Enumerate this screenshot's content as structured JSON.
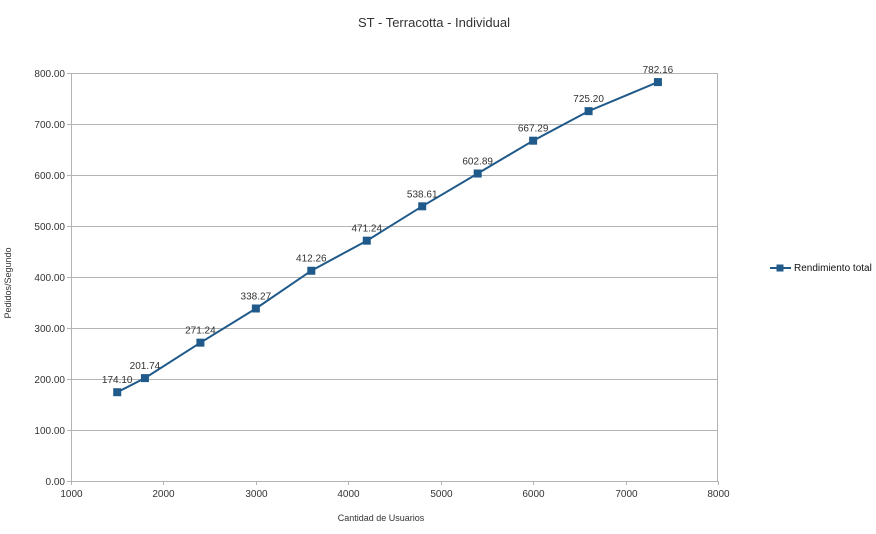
{
  "chart_data": {
    "type": "line",
    "title": "ST - Terracotta - Individual",
    "xlabel": "Cantidad de Usuarios",
    "ylabel": "Pedidos/Segundo",
    "xlim": [
      1000,
      8000
    ],
    "ylim": [
      0,
      800
    ],
    "xticks": [
      "1000",
      "2000",
      "3000",
      "4000",
      "5000",
      "6000",
      "7000",
      "8000"
    ],
    "yticks": [
      "0.00",
      "100.00",
      "200.00",
      "300.00",
      "400.00",
      "500.00",
      "600.00",
      "700.00",
      "800.00"
    ],
    "grid": true,
    "legend_position": "right",
    "series": [
      {
        "name": "Rendimiento total",
        "color": "#1f5a8a",
        "x": [
          1500,
          1800,
          2400,
          3000,
          3600,
          4200,
          4800,
          5400,
          6000,
          6600,
          7350
        ],
        "y": [
          174.1,
          201.74,
          271.24,
          338.27,
          412.26,
          471.24,
          538.61,
          602.89,
          667.29,
          725.2,
          782.16
        ],
        "labels": [
          "174.10",
          "201.74",
          "271.24",
          "338.27",
          "412.26",
          "471.24",
          "538.61",
          "602.89",
          "667.29",
          "725.20",
          "782.16"
        ]
      }
    ]
  }
}
